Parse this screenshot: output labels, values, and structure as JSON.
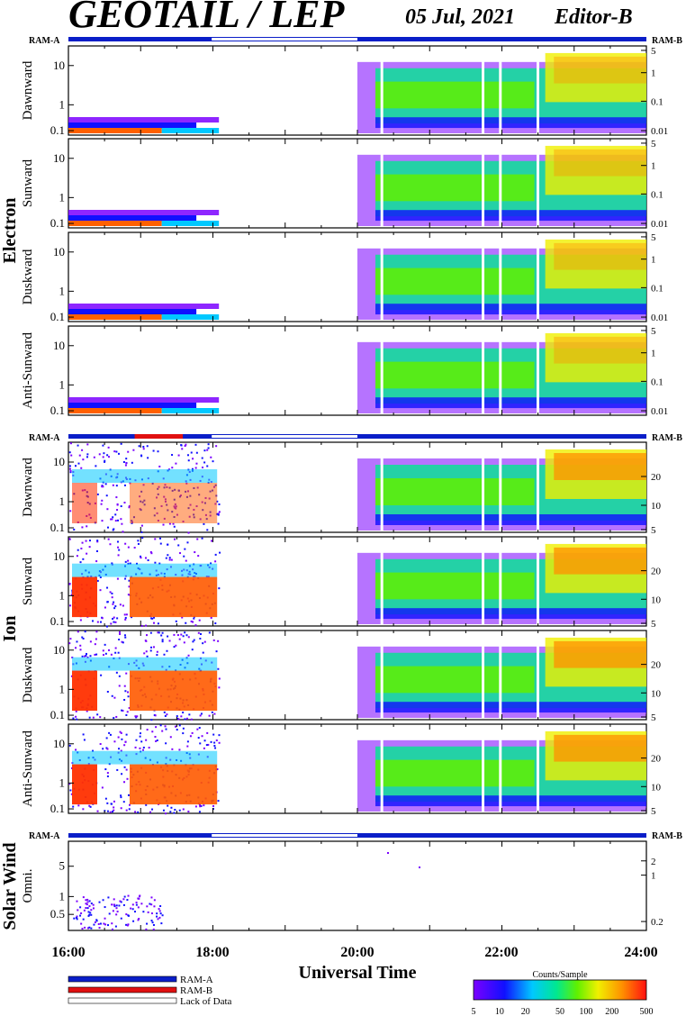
{
  "header": {
    "title": "GEOTAIL / LEP",
    "date": "05 Jul, 2021",
    "editor": "Editor-B"
  },
  "groups": {
    "electron": "Electron",
    "ion": "Ion",
    "solar_wind": "Solar Wind"
  },
  "ram_labels": {
    "left": "RAM-A",
    "right": "RAM-B"
  },
  "xaxis": {
    "label": "Universal Time",
    "ticks": [
      "16:00",
      "18:00",
      "20:00",
      "22:00",
      "24:00"
    ]
  },
  "legend": {
    "items": [
      "RAM-A",
      "RAM-B",
      "Lack of Data"
    ],
    "colors": {
      "ram_a": "#0a1ec8",
      "ram_b": "#e01010",
      "lack": "#ffffff"
    }
  },
  "colorbar": {
    "title": "Counts/Sample",
    "ticks": [
      "5",
      "10",
      "20",
      "50",
      "100",
      "200",
      "500"
    ]
  },
  "chart_data": [
    {
      "type": "heatmap",
      "group": "Electron",
      "ylabel": "Dawnward",
      "yticks_left": [
        "10",
        "1",
        "0.1"
      ],
      "yticks_right": [
        "5",
        "1",
        "0.1",
        "0.01"
      ],
      "x_range": [
        "16:00",
        "24:00"
      ],
      "data_gap": [
        "18:05",
        "20:00"
      ],
      "ram_b_interval": [],
      "colorbar_range": [
        5,
        500
      ]
    },
    {
      "type": "heatmap",
      "group": "Electron",
      "ylabel": "Sunward",
      "yticks_left": [
        "10",
        "1",
        "0.1"
      ],
      "yticks_right": [
        "5",
        "1",
        "0.1",
        "0.01"
      ],
      "x_range": [
        "16:00",
        "24:00"
      ],
      "data_gap": [
        "18:05",
        "20:00"
      ],
      "ram_b_interval": [],
      "colorbar_range": [
        5,
        500
      ]
    },
    {
      "type": "heatmap",
      "group": "Electron",
      "ylabel": "Duskward",
      "yticks_left": [
        "10",
        "1",
        "0.1"
      ],
      "yticks_right": [
        "5",
        "1",
        "0.1",
        "0.01"
      ],
      "x_range": [
        "16:00",
        "24:00"
      ],
      "data_gap": [
        "18:05",
        "20:00"
      ],
      "ram_b_interval": [],
      "colorbar_range": [
        5,
        500
      ]
    },
    {
      "type": "heatmap",
      "group": "Electron",
      "ylabel": "Anti-Sunward",
      "yticks_left": [
        "10",
        "1",
        "0.1"
      ],
      "yticks_right": [
        "5",
        "1",
        "0.1",
        "0.01"
      ],
      "x_range": [
        "16:00",
        "24:00"
      ],
      "data_gap": [
        "18:05",
        "20:00"
      ],
      "ram_b_interval": [],
      "colorbar_range": [
        5,
        500
      ]
    },
    {
      "type": "heatmap",
      "group": "Ion",
      "ylabel": "Dawnward",
      "yticks_left": [
        "10",
        "1",
        "0.1"
      ],
      "yticks_right": [
        "20",
        "10",
        "5"
      ],
      "x_range": [
        "16:00",
        "24:00"
      ],
      "data_gap": [
        "18:05",
        "20:00"
      ],
      "ram_b_interval": [
        "16:55",
        "17:35"
      ],
      "colorbar_range": [
        5,
        500
      ]
    },
    {
      "type": "heatmap",
      "group": "Ion",
      "ylabel": "Sunward",
      "yticks_left": [
        "10",
        "1",
        "0.1"
      ],
      "yticks_right": [
        "20",
        "10",
        "5"
      ],
      "x_range": [
        "16:00",
        "24:00"
      ],
      "data_gap": [
        "18:05",
        "20:00"
      ],
      "ram_b_interval": [
        "16:55",
        "17:35"
      ],
      "colorbar_range": [
        5,
        500
      ]
    },
    {
      "type": "heatmap",
      "group": "Ion",
      "ylabel": "Duskward",
      "yticks_left": [
        "10",
        "1",
        "0.1"
      ],
      "yticks_right": [
        "20",
        "10",
        "5"
      ],
      "x_range": [
        "16:00",
        "24:00"
      ],
      "data_gap": [
        "18:05",
        "20:00"
      ],
      "ram_b_interval": [
        "16:55",
        "17:35"
      ],
      "colorbar_range": [
        5,
        500
      ]
    },
    {
      "type": "heatmap",
      "group": "Ion",
      "ylabel": "Anti-Sunward",
      "yticks_left": [
        "10",
        "1",
        "0.1"
      ],
      "yticks_right": [
        "20",
        "10",
        "5"
      ],
      "x_range": [
        "16:00",
        "24:00"
      ],
      "data_gap": [
        "18:05",
        "20:00"
      ],
      "ram_b_interval": [
        "16:55",
        "17:35"
      ],
      "colorbar_range": [
        5,
        500
      ]
    },
    {
      "type": "heatmap",
      "group": "Solar Wind",
      "ylabel": "Omni.",
      "yticks_left": [
        "5",
        "1",
        "0.5"
      ],
      "yticks_right": [
        "2",
        "1",
        "0.2"
      ],
      "x_range": [
        "16:00",
        "24:00"
      ],
      "data_gap": [
        "18:05",
        "20:00"
      ],
      "ram_b_interval": [],
      "colorbar_range": [
        5,
        500
      ]
    }
  ]
}
